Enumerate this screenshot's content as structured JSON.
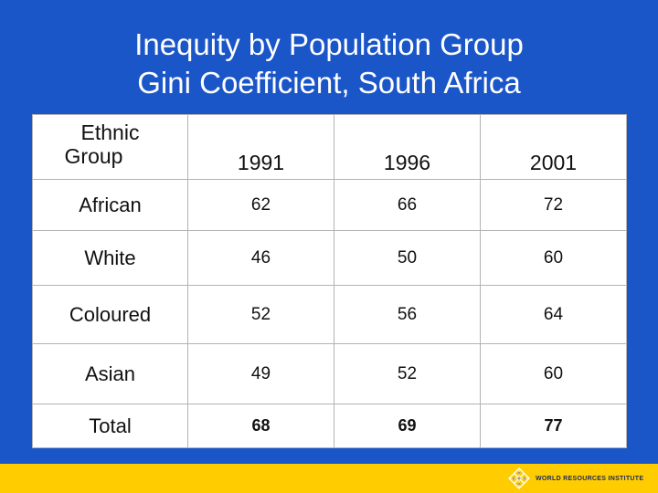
{
  "title": {
    "line1": "Inequity by Population Group",
    "line2": "Gini Coefficient, South Africa"
  },
  "table": {
    "header": {
      "group_line1": "Ethnic",
      "group_line2": "Group",
      "years": [
        "1991",
        "1996",
        "2001"
      ]
    },
    "rows": [
      {
        "label": "African",
        "values": [
          "62",
          "66",
          "72"
        ]
      },
      {
        "label": "White",
        "values": [
          "46",
          "50",
          "60"
        ]
      },
      {
        "label": "Coloured",
        "values": [
          "52",
          "56",
          "64"
        ]
      },
      {
        "label": "Asian",
        "values": [
          "49",
          "52",
          "60"
        ]
      },
      {
        "label": "Total",
        "values": [
          "68",
          "69",
          "77"
        ]
      }
    ]
  },
  "footer": {
    "logo_text": "WORLD RESOURCES INSTITUTE",
    "logo_icon": "wri-lattice-icon"
  },
  "colors": {
    "background": "#1a56c8",
    "footer": "#ffcc00",
    "table_bg": "#ffffff"
  }
}
